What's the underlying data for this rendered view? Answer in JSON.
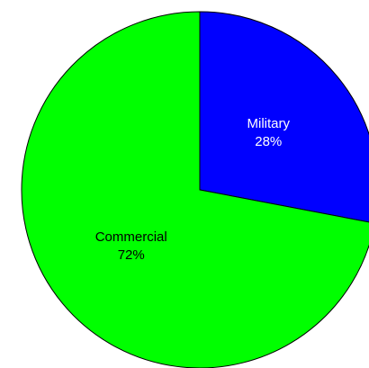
{
  "chart_data": {
    "type": "pie",
    "slices": [
      {
        "label": "Military",
        "value": 28,
        "value_label": "28%",
        "color": "#0000FF",
        "text_color": "#FFFFFF"
      },
      {
        "label": "Commercial",
        "value": 72,
        "value_label": "72%",
        "color": "#00FF00",
        "text_color": "#000000"
      }
    ],
    "start": "12 o'clock",
    "direction": "clockwise",
    "labels_inside": true,
    "legend": "none"
  }
}
